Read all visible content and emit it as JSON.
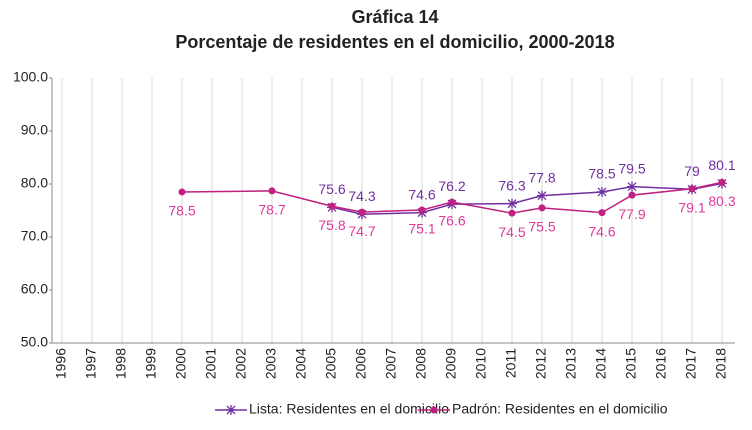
{
  "chart_data": {
    "type": "line",
    "title": "Gráfica 14",
    "subtitle": "Porcentaje de residentes en el domicilio, 2000-2018",
    "xlim": [
      1996,
      2018
    ],
    "xticks": [
      1996,
      1997,
      1998,
      1999,
      2000,
      2001,
      2002,
      2003,
      2004,
      2005,
      2006,
      2007,
      2008,
      2009,
      2010,
      2011,
      2012,
      2013,
      2014,
      2015,
      2016,
      2017,
      2018
    ],
    "ylim": [
      50,
      100
    ],
    "yticks": [
      {
        "value": 50,
        "label": "50.0"
      },
      {
        "value": 60,
        "label": "60.0"
      },
      {
        "value": 70,
        "label": "70.0"
      },
      {
        "value": 80,
        "label": "80.0"
      },
      {
        "value": 90,
        "label": "90.0"
      },
      {
        "value": 100,
        "label": "100.0"
      }
    ],
    "grid": true,
    "legend": "bottom",
    "series": [
      {
        "name": "Lista: Residentes en el domicilio",
        "color": "#7030a0",
        "marker": "star",
        "x": [
          2005,
          2006,
          2008,
          2009,
          2011,
          2012,
          2014,
          2015,
          2017,
          2018
        ],
        "values": [
          75.6,
          74.3,
          74.6,
          76.2,
          76.3,
          77.8,
          78.5,
          79.5,
          79.0,
          80.1
        ]
      },
      {
        "name": "Padrón: Residentes en el domicilio",
        "color": "#c0207f",
        "marker": "dot",
        "x": [
          2000,
          2003,
          2005,
          2006,
          2008,
          2009,
          2011,
          2012,
          2014,
          2015,
          2017,
          2018
        ],
        "values": [
          78.5,
          78.7,
          75.8,
          74.7,
          75.1,
          76.6,
          74.5,
          75.5,
          74.6,
          77.9,
          79.1,
          80.3
        ]
      }
    ]
  }
}
